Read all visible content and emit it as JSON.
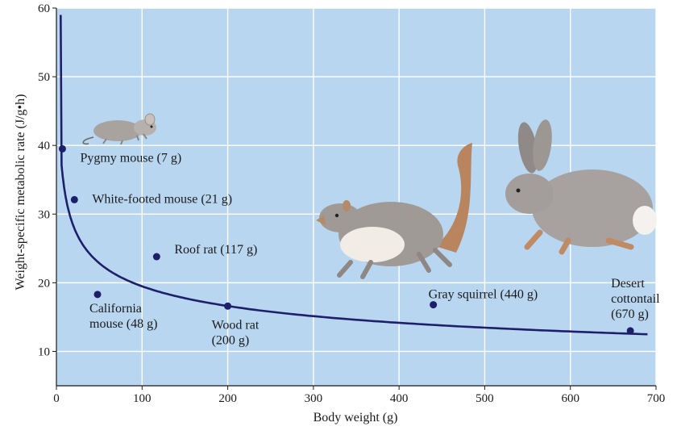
{
  "chart_data": {
    "type": "scatter",
    "xlabel": "Body weight (g)",
    "ylabel": "Weight-specific metabolic rate (J/g•h)",
    "xlim": [
      0,
      700
    ],
    "ylim": [
      5,
      60
    ],
    "x_ticks": [
      0,
      100,
      200,
      300,
      400,
      500,
      600,
      700
    ],
    "y_ticks": [
      10,
      20,
      30,
      40,
      50,
      60
    ],
    "grid": true,
    "colors": {
      "background": "#b9d6f0",
      "grid": "#ffffff",
      "marker": "#1d1f6b",
      "curve": "#1d1f6b"
    },
    "points": [
      {
        "x": 7,
        "y": 39.5,
        "label_lines": [
          "Pygmy mouse (7 g)"
        ]
      },
      {
        "x": 21,
        "y": 32.1,
        "label_lines": [
          "White-footed mouse (21 g)"
        ]
      },
      {
        "x": 48,
        "y": 18.3,
        "label_lines": [
          "California",
          "mouse (48 g)"
        ]
      },
      {
        "x": 117,
        "y": 23.8,
        "label_lines": [
          "Roof rat (117 g)"
        ]
      },
      {
        "x": 200,
        "y": 16.6,
        "label_lines": [
          "Wood rat",
          "(200 g)"
        ]
      },
      {
        "x": 440,
        "y": 16.8,
        "label_lines": [
          "Gray squirrel (440 g)"
        ]
      },
      {
        "x": 670,
        "y": 13.0,
        "label_lines": [
          "Desert",
          "cottontail",
          "(670 g)"
        ]
      }
    ],
    "fit_curve": {
      "type": "power",
      "coefficient": 56.2,
      "exponent": -0.23,
      "x_range": [
        6,
        690
      ]
    }
  }
}
